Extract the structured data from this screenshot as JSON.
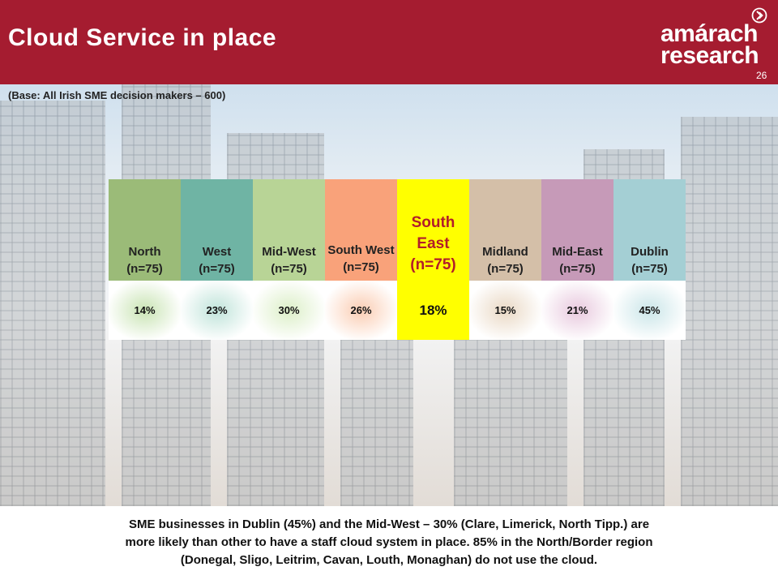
{
  "header": {
    "title": "Cloud Service in place",
    "logo_line1": "amárach",
    "logo_line2": "research",
    "page_number": "26"
  },
  "base_note": "(Base: All Irish SME decision makers – 600)",
  "table": {
    "columns": [
      {
        "line1": "North",
        "line2": "(n=75)",
        "value": "14%",
        "header_color": "#9bbb78",
        "value_tint": "#c9e4b4"
      },
      {
        "line1": "West",
        "line2": "(n=75)",
        "value": "23%",
        "header_color": "#6fb4a4",
        "value_tint": "#c0e4da"
      },
      {
        "line1": "Mid-West",
        "line2": "(n=75)",
        "value": "30%",
        "header_color": "#b8d496",
        "value_tint": "#dcefc8"
      },
      {
        "line1": "South West",
        "line2": "(n=75)",
        "value": "26%",
        "header_color": "#f9a27a",
        "value_tint": "#fbcdb3"
      },
      {
        "line1": "South East",
        "line2": "(n=75)",
        "value": "18%",
        "header_color": "#ffff00",
        "value_tint": "#ffff00"
      },
      {
        "line1": "Midland",
        "line2": "(n=75)",
        "value": "15%",
        "header_color": "#d4bfa8",
        "value_tint": "#ead9c5"
      },
      {
        "line1": "Mid-East",
        "line2": "(n=75)",
        "value": "21%",
        "header_color": "#c69ab8",
        "value_tint": "#e8c9de"
      },
      {
        "line1": "Dublin",
        "line2": "(n=75)",
        "value": "45%",
        "header_color": "#a4cfd4",
        "value_tint": "#cbe6e9"
      }
    ],
    "highlight_color": "#b21c2a"
  },
  "summary": {
    "line1": "SME businesses in Dublin (45%) and the Mid-West – 30% (Clare, Limerick, North Tipp.) are",
    "line2": "more likely than other to have a staff  cloud system in place. 85% in the North/Border region",
    "line3": "(Donegal, Sligo, Leitrim, Cavan, Louth, Monaghan) do not use the cloud."
  },
  "colors": {
    "brand": "#a51c30"
  },
  "icons": {
    "logo_arrow": "chevron-circle-right-icon"
  }
}
